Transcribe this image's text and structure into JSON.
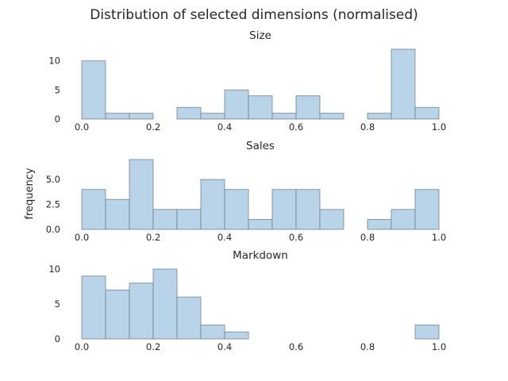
{
  "chart_data": {
    "type": "bar",
    "title": "Distribution of selected dimensions (normalised)",
    "ylabel": "frequency",
    "bar_color": "#b9d4e8",
    "edge_color": "#6d7b86",
    "grid": false,
    "bin_edges": [
      0,
      0.0667,
      0.1333,
      0.2,
      0.2667,
      0.3333,
      0.4,
      0.4667,
      0.5333,
      0.6,
      0.6667,
      0.7333,
      0.8,
      0.8667,
      0.9333,
      1.0
    ],
    "xlim": [
      0,
      1
    ],
    "xticks": [
      "0.0",
      "0.2",
      "0.4",
      "0.6",
      "0.8",
      "1.0"
    ],
    "panels": [
      {
        "title": "Size",
        "values": [
          10,
          1,
          1,
          0,
          2,
          1,
          5,
          4,
          1,
          4,
          1,
          0,
          1,
          12,
          2
        ],
        "ylim": [
          0,
          12
        ],
        "yticks": [
          "0",
          "5",
          "10"
        ]
      },
      {
        "title": "Sales",
        "values": [
          4,
          3,
          7,
          2,
          2,
          5,
          4,
          1,
          4,
          4,
          2,
          0,
          1,
          2,
          4
        ],
        "ylim": [
          0,
          7
        ],
        "yticks": [
          "0.0",
          "2.5",
          "5.0"
        ]
      },
      {
        "title": "Markdown",
        "values": [
          9,
          7,
          8,
          10,
          6,
          2,
          1,
          0,
          0,
          0,
          0,
          0,
          0,
          0,
          2
        ],
        "ylim": [
          0,
          10
        ],
        "yticks": [
          "0",
          "5",
          "10"
        ]
      }
    ]
  }
}
